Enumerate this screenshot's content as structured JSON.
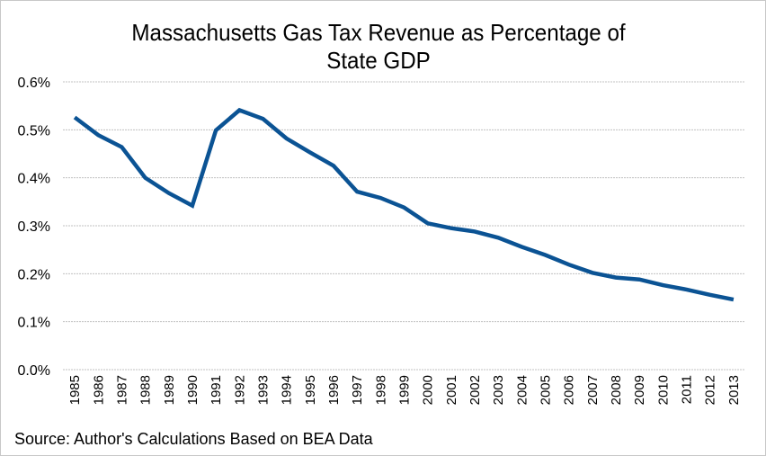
{
  "chart_data": {
    "type": "line",
    "title": "Massachusetts Gas Tax Revenue as Percentage of State GDP",
    "title_lines": [
      "Massachusetts Gas Tax Revenue as Percentage of",
      "State GDP"
    ],
    "xlabel": "",
    "ylabel": "",
    "source": "Source: Author's Calculations Based on BEA Data",
    "ylim": [
      0,
      0.6
    ],
    "y_ticks": [
      0.0,
      0.1,
      0.2,
      0.3,
      0.4,
      0.5,
      0.6
    ],
    "y_tick_labels": [
      "0.0%",
      "0.1%",
      "0.2%",
      "0.3%",
      "0.4%",
      "0.5%",
      "0.6%"
    ],
    "grid": true,
    "legend": "none",
    "categories": [
      "1985",
      "1986",
      "1987",
      "1988",
      "1989",
      "1990",
      "1991",
      "1992",
      "1993",
      "1994",
      "1995",
      "1996",
      "1997",
      "1998",
      "1999",
      "2000",
      "2001",
      "2002",
      "2003",
      "2004",
      "2005",
      "2006",
      "2007",
      "2008",
      "2009",
      "2010",
      "2011",
      "2012",
      "2013"
    ],
    "series": [
      {
        "name": "Gas Tax Revenue as % of State GDP",
        "color": "#0b5394",
        "values": [
          0.526,
          0.489,
          0.464,
          0.4,
          0.368,
          0.342,
          0.499,
          0.541,
          0.523,
          0.482,
          0.453,
          0.425,
          0.371,
          0.358,
          0.338,
          0.305,
          0.295,
          0.288,
          0.275,
          0.256,
          0.239,
          0.219,
          0.202,
          0.192,
          0.188,
          0.176,
          0.167,
          0.156,
          0.146
        ]
      }
    ]
  },
  "colors": {
    "line": "#0b5394",
    "grid": "#c0c0c0",
    "border": "#c8c8c8"
  }
}
